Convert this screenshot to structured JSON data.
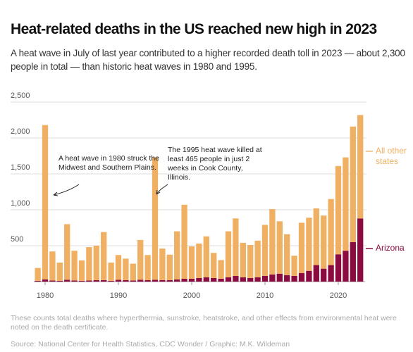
{
  "chart_data": {
    "type": "stacked-bar",
    "title": "Heat-related deaths in the US reached new high in 2023",
    "subtitle": "A heat wave in July of last year contributed to a higher recorded death toll in 2023 — about 2,300 people in total — than historic heat waves in 1980 and 1995.",
    "x": [
      1979,
      1980,
      1981,
      1982,
      1983,
      1984,
      1985,
      1986,
      1987,
      1988,
      1989,
      1990,
      1991,
      1992,
      1993,
      1994,
      1995,
      1996,
      1997,
      1998,
      1999,
      2000,
      2001,
      2002,
      2003,
      2004,
      2005,
      2006,
      2007,
      2008,
      2009,
      2010,
      2011,
      2012,
      2013,
      2014,
      2015,
      2016,
      2017,
      2018,
      2019,
      2020,
      2021,
      2022,
      2023
    ],
    "series": [
      {
        "name": "Arizona",
        "color": "#8b0a3f",
        "values": [
          10,
          30,
          15,
          10,
          25,
          15,
          10,
          15,
          20,
          20,
          10,
          25,
          20,
          15,
          25,
          20,
          25,
          20,
          20,
          30,
          40,
          40,
          50,
          60,
          50,
          40,
          60,
          80,
          60,
          50,
          60,
          80,
          100,
          110,
          90,
          80,
          120,
          150,
          230,
          180,
          230,
          380,
          430,
          550,
          880
        ]
      },
      {
        "name": "All other states",
        "color": "#f0b063",
        "values": [
          180,
          2150,
          405,
          255,
          775,
          415,
          285,
          465,
          480,
          670,
          255,
          345,
          300,
          235,
          555,
          350,
          1705,
          440,
          355,
          670,
          1030,
          450,
          480,
          570,
          350,
          260,
          640,
          800,
          480,
          460,
          510,
          710,
          910,
          730,
          570,
          280,
          700,
          740,
          790,
          740,
          920,
          1230,
          1300,
          1610,
          1440
        ]
      }
    ],
    "xlim": [
      1978.5,
      2023.5
    ],
    "xticks": [
      1980,
      1990,
      2000,
      2010,
      2020
    ],
    "ylim": [
      0,
      2500
    ],
    "yticks": [
      500,
      {
        "value": 1000,
        "label": "1,000"
      },
      {
        "value": 1500,
        "label": "1,500"
      },
      {
        "value": 2000,
        "label": "2,000"
      },
      {
        "value": 2500,
        "label": "2,500"
      }
    ],
    "grid": true,
    "legend": "right",
    "annotations": [
      "A heat wave in 1980 struck the Midwest and Southern Plains.",
      "The 1995 heat wave killed at least 465 people in just 2 weeks in Cook County, Illinois."
    ],
    "note": "These counts total deaths where hyperthermia, sunstroke, heatstroke, and other effects from environmental heat were noted on the death certificate.",
    "source": "Source: National Center for Health Statistics, CDC Wonder / Graphic: M.K. Wildeman"
  }
}
